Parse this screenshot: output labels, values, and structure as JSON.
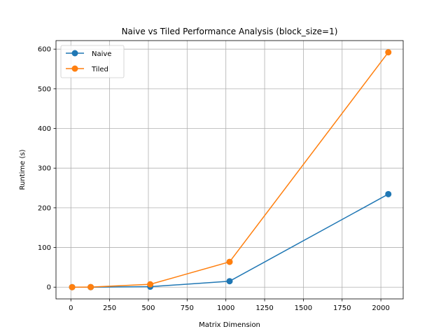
{
  "chart_data": {
    "type": "line",
    "title": "Naive vs Tiled Performance Analysis (block_size=1)",
    "xlabel": "Matrix Dimension",
    "ylabel": "Runtime (s)",
    "xlim": [
      -96,
      2144
    ],
    "ylim": [
      -29.6,
      621.5
    ],
    "xticks": [
      0,
      250,
      500,
      750,
      1000,
      1250,
      1500,
      1750,
      2000
    ],
    "yticks": [
      0,
      100,
      200,
      300,
      400,
      500,
      600
    ],
    "grid": true,
    "legend_position": "top-left",
    "x": [
      8,
      128,
      512,
      1024,
      2048
    ],
    "series": [
      {
        "name": "Naive",
        "color": "#1f77b4",
        "values": [
          0.0,
          0.05,
          1.2,
          15.0,
          234.5
        ]
      },
      {
        "name": "Tiled",
        "color": "#ff7f0e",
        "values": [
          0.0,
          0.2,
          7.2,
          63.8,
          592.0
        ]
      }
    ]
  }
}
